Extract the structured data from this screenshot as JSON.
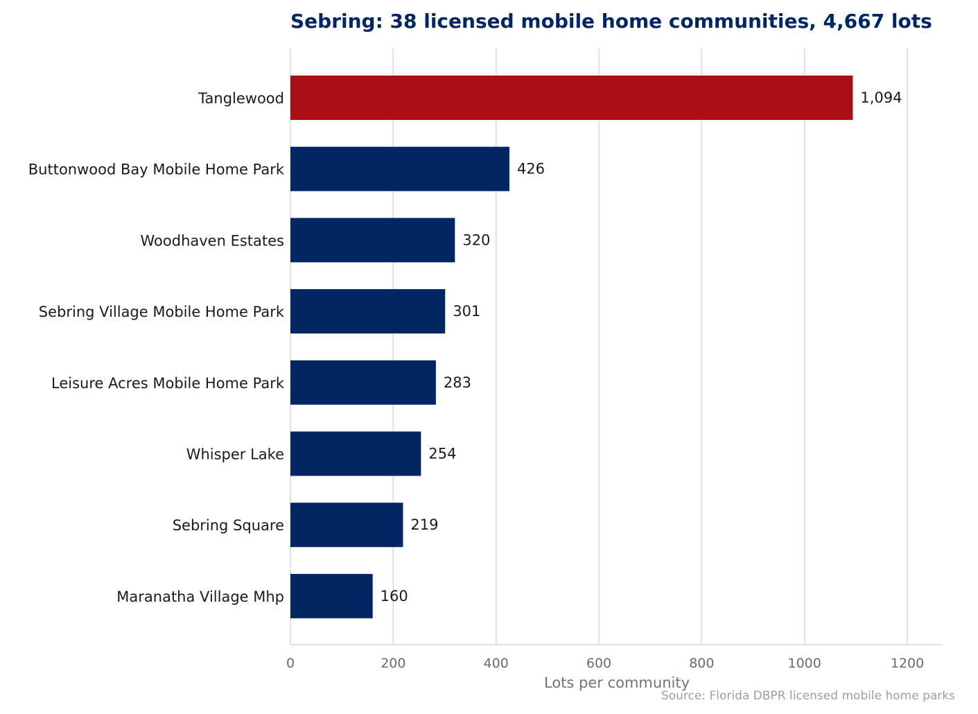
{
  "chart_data": {
    "type": "bar",
    "orientation": "horizontal",
    "title": "Sebring: 38 licensed mobile home communities, 4,667 lots",
    "xlabel": "Lots per community",
    "ylabel": "",
    "source": "Source: Florida DBPR licensed mobile home parks",
    "categories": [
      "Tanglewood",
      "Buttonwood Bay Mobile Home Park",
      "Woodhaven Estates",
      "Sebring Village Mobile Home Park",
      "Leisure Acres Mobile Home Park",
      "Whisper Lake",
      "Sebring Square",
      "Maranatha Village Mhp"
    ],
    "values": [
      1094,
      426,
      320,
      301,
      283,
      254,
      219,
      160
    ],
    "value_labels": [
      "1,094",
      "426",
      "320",
      "301",
      "283",
      "254",
      "219",
      "160"
    ],
    "xlim": [
      0,
      1270
    ],
    "xticks": [
      0,
      200,
      400,
      600,
      800,
      1000,
      1200
    ],
    "xtick_labels": [
      "0",
      "200",
      "400",
      "600",
      "800",
      "1000",
      "1200"
    ],
    "grid": "vertical",
    "colors": {
      "highlight": "#a91016",
      "bar": "#002663",
      "grid": "#d9d9d9",
      "axis": "#d8d8cc"
    },
    "highlight_index": 0
  }
}
